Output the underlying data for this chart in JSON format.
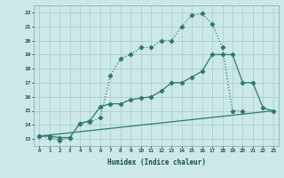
{
  "background_color": "#cce8e8",
  "grid_color": "#aecfcf",
  "line_color": "#2d7a6e",
  "xlabel": "Humidex (Indice chaleur)",
  "xlim": [
    -0.5,
    23.5
  ],
  "ylim": [
    12.5,
    22.5
  ],
  "yticks": [
    13,
    14,
    15,
    16,
    17,
    18,
    19,
    20,
    21,
    22
  ],
  "xticks": [
    0,
    1,
    2,
    3,
    4,
    5,
    6,
    7,
    8,
    9,
    10,
    11,
    12,
    13,
    14,
    15,
    16,
    17,
    18,
    19,
    20,
    21,
    22,
    23
  ],
  "line1_x": [
    0,
    1,
    2,
    3,
    4,
    5,
    6,
    7,
    8,
    9,
    10,
    11,
    12,
    13,
    14,
    15,
    16,
    17,
    18,
    19,
    20
  ],
  "line1_y": [
    13.2,
    13.1,
    12.9,
    13.1,
    14.1,
    14.2,
    14.5,
    17.5,
    18.7,
    19.0,
    19.5,
    19.5,
    20.0,
    20.0,
    21.0,
    21.8,
    21.9,
    21.2,
    19.5,
    15.0,
    15.0
  ],
  "line2_x": [
    0,
    1,
    2,
    3,
    4,
    5,
    6,
    7,
    8,
    9,
    10,
    11,
    12,
    13,
    14,
    15,
    16,
    17,
    18,
    19,
    20,
    21,
    22,
    23
  ],
  "line2_y": [
    13.2,
    13.2,
    13.1,
    13.1,
    14.1,
    14.3,
    15.3,
    15.5,
    15.5,
    15.8,
    15.9,
    16.0,
    16.4,
    17.0,
    17.0,
    17.4,
    17.8,
    19.0,
    19.0,
    19.0,
    17.0,
    17.0,
    15.2,
    15.0
  ],
  "line3_x": [
    0,
    23
  ],
  "line3_y": [
    13.2,
    15.0
  ]
}
